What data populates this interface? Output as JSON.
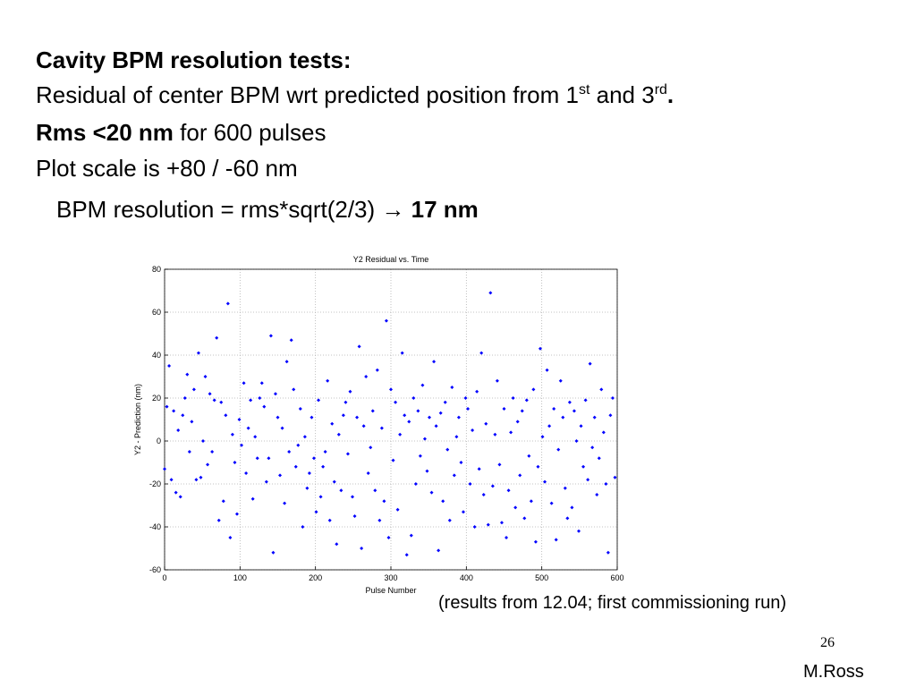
{
  "slide": {
    "heading": "Cavity BPM resolution tests:",
    "line2": [
      "Residual of center BPM wrt predicted position from 1",
      "st",
      " and 3",
      "rd",
      "."
    ],
    "line3": [
      "Rms <20 nm",
      " for 600 pulses"
    ],
    "line4": "Plot scale is +80 / -60 nm",
    "line5": [
      "BPM resolution = rms*sqrt(2/3) ",
      "→",
      " 17 nm"
    ],
    "footnote": "(results from 12.04; first commissioning run)",
    "page_number": "26",
    "author": "M.Ross"
  },
  "chart_data": {
    "type": "scatter",
    "title": "Y2 Residual vs. Time",
    "x_label": "Pulse Number",
    "y_label": "Y2 - Prediction (nm)",
    "color": "#0000ff",
    "xlim": [
      0,
      600
    ],
    "xticks": [
      0,
      100,
      200,
      300,
      400,
      500,
      600
    ],
    "ylim": [
      -60,
      80
    ],
    "yticks": [
      -60,
      -40,
      -20,
      0,
      20,
      40,
      60,
      80
    ],
    "grid": true,
    "x": [
      0,
      3,
      6,
      9,
      12,
      15,
      18,
      21,
      24,
      27,
      30,
      33,
      36,
      39,
      42,
      45,
      48,
      51,
      54,
      57,
      60,
      63,
      66,
      69,
      72,
      75,
      78,
      81,
      84,
      87,
      90,
      93,
      96,
      99,
      102,
      105,
      108,
      111,
      114,
      117,
      120,
      123,
      126,
      129,
      132,
      135,
      138,
      141,
      144,
      147,
      150,
      153,
      156,
      159,
      162,
      165,
      168,
      171,
      174,
      177,
      180,
      183,
      186,
      189,
      192,
      195,
      198,
      201,
      204,
      207,
      210,
      213,
      216,
      219,
      222,
      225,
      228,
      231,
      234,
      237,
      240,
      243,
      246,
      249,
      252,
      255,
      258,
      261,
      264,
      267,
      270,
      273,
      276,
      279,
      282,
      285,
      288,
      291,
      294,
      297,
      300,
      303,
      306,
      309,
      312,
      315,
      318,
      321,
      324,
      327,
      330,
      333,
      336,
      339,
      342,
      345,
      348,
      351,
      354,
      357,
      360,
      363,
      366,
      369,
      372,
      375,
      378,
      381,
      384,
      387,
      390,
      393,
      396,
      399,
      402,
      405,
      408,
      411,
      414,
      417,
      420,
      423,
      426,
      429,
      432,
      435,
      438,
      441,
      444,
      447,
      450,
      453,
      456,
      459,
      462,
      465,
      468,
      471,
      474,
      477,
      480,
      483,
      486,
      489,
      492,
      495,
      498,
      501,
      504,
      507,
      510,
      513,
      516,
      519,
      522,
      525,
      528,
      531,
      534,
      537,
      540,
      543,
      546,
      549,
      552,
      555,
      558,
      561,
      564,
      567,
      570,
      573,
      576,
      579,
      582,
      585,
      588,
      591,
      594,
      597
    ],
    "values": [
      -13,
      16,
      35,
      -18,
      14,
      -24,
      5,
      -26,
      12,
      20,
      31,
      -5,
      9,
      24,
      -18,
      41,
      -17,
      0,
      30,
      -11,
      22,
      -5,
      19,
      48,
      -37,
      18,
      -28,
      12,
      64,
      -45,
      3,
      -10,
      -34,
      10,
      -2,
      27,
      -15,
      6,
      19,
      -27,
      2,
      -8,
      20,
      27,
      16,
      -19,
      -8,
      49,
      -52,
      22,
      11,
      -16,
      6,
      -29,
      37,
      -5,
      47,
      24,
      -12,
      -2,
      15,
      -40,
      2,
      -22,
      -15,
      11,
      -8,
      -33,
      19,
      -26,
      -12,
      -5,
      28,
      -37,
      8,
      -19,
      -48,
      3,
      -23,
      12,
      18,
      -6,
      23,
      -26,
      -35,
      11,
      44,
      -50,
      7,
      30,
      -15,
      -3,
      14,
      -23,
      33,
      -37,
      6,
      -28,
      56,
      -45,
      24,
      -9,
      18,
      -32,
      3,
      41,
      12,
      -53,
      9,
      -44,
      20,
      -20,
      14,
      -7,
      26,
      1,
      -14,
      11,
      -24,
      37,
      7,
      -51,
      13,
      -28,
      18,
      -4,
      -37,
      25,
      -16,
      2,
      11,
      -10,
      -33,
      20,
      15,
      -20,
      5,
      -40,
      23,
      -13,
      41,
      -25,
      8,
      -39,
      69,
      -21,
      3,
      28,
      -11,
      -38,
      15,
      -45,
      -23,
      4,
      20,
      -31,
      9,
      -16,
      14,
      -36,
      19,
      -7,
      -28,
      24,
      -47,
      -12,
      43,
      2,
      -19,
      33,
      7,
      -29,
      15,
      -46,
      -4,
      28,
      11,
      -22,
      -36,
      18,
      -31,
      14,
      0,
      -42,
      7,
      -12,
      19,
      -18,
      36,
      -3,
      11,
      -25,
      -8,
      24,
      4,
      -20,
      -52,
      12,
      20,
      -17
    ]
  }
}
